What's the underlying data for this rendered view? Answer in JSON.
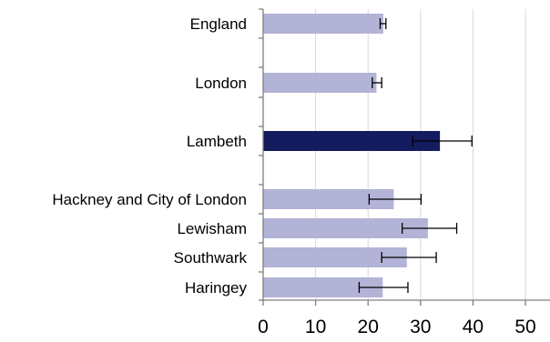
{
  "chart_data": {
    "type": "bar",
    "orientation": "horizontal",
    "title": "",
    "xlabel": "",
    "ylabel": "",
    "xlim": [
      0,
      55
    ],
    "x_ticks": [
      0,
      10,
      20,
      30,
      40,
      50
    ],
    "x_tick_labels": [
      "0",
      "10",
      "20",
      "30",
      "40",
      "50"
    ],
    "grid": "vertical",
    "legend": "none",
    "colors": {
      "default_bar": "#b3b3d7",
      "highlight_bar": "#131c5e",
      "gridline": "#d9d9d9",
      "axis": "#7f7f7f",
      "error_bar": "#000000"
    },
    "bars": [
      {
        "label": "England",
        "value": 22.9,
        "ci_low": 22.3,
        "ci_high": 23.4,
        "highlight": false
      },
      {
        "label": "London",
        "value": 21.6,
        "ci_low": 20.8,
        "ci_high": 22.6,
        "highlight": false
      },
      {
        "label": "Lambeth",
        "value": 33.7,
        "ci_low": 28.5,
        "ci_high": 39.8,
        "highlight": true
      },
      {
        "label": "Hackney and City of London",
        "value": 24.9,
        "ci_low": 20.2,
        "ci_high": 30.1,
        "highlight": false
      },
      {
        "label": "Lewisham",
        "value": 31.4,
        "ci_low": 26.5,
        "ci_high": 36.9,
        "highlight": false
      },
      {
        "label": "Southwark",
        "value": 27.4,
        "ci_low": 22.6,
        "ci_high": 33.0,
        "highlight": false
      },
      {
        "label": "Haringey",
        "value": 22.8,
        "ci_low": 18.3,
        "ci_high": 27.6,
        "highlight": false
      }
    ]
  }
}
